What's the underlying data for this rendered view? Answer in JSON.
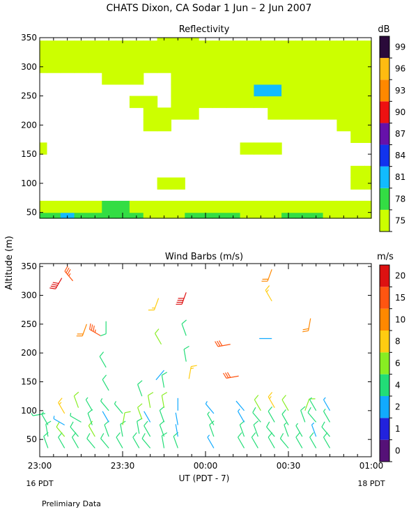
{
  "page_title": "CHATS Dixon, CA  Sodar    1 Jun –  2 Jun 2007",
  "y_axis_label": "Altitude (m)",
  "x_axis_label": "UT  (PDT - 7)",
  "footer_note": "Prelimiary Data",
  "date_left": "16 PDT",
  "date_right": "18 PDT",
  "chart_data": [
    {
      "type": "heatmap",
      "title": "Reflectivity",
      "units_label": "dB",
      "x_ticks": [
        "23:00",
        "23:30",
        "00:00",
        "00:30",
        "01:00"
      ],
      "y_ticks": [
        "50",
        "100",
        "150",
        "200",
        "250",
        "300",
        "350"
      ],
      "ylim": [
        40,
        350
      ],
      "colorbar_levels": [
        "75",
        "78",
        "81",
        "84",
        "87",
        "90",
        "93",
        "96",
        "99"
      ],
      "colorbar_colors": [
        "#ccff00",
        "#33dd44",
        "#11bbff",
        "#1133ee",
        "#6611aa",
        "#ee1111",
        "#ff8800",
        "#ffbb11",
        "#2a0a3a"
      ],
      "grid_times": [
        "23:00",
        "23:05",
        "23:10",
        "23:15",
        "23:20",
        "23:25",
        "23:30",
        "23:35",
        "23:40",
        "23:45",
        "23:50",
        "23:55",
        "00:00",
        "00:05",
        "00:10",
        "00:15",
        "00:20",
        "00:25",
        "00:30",
        "00:35",
        "00:40",
        "00:45",
        "00:50",
        "00:55",
        "01:00"
      ],
      "grid_altitudes": [
        40,
        60,
        80,
        100,
        120,
        140,
        160,
        180,
        200,
        220,
        240,
        260,
        280,
        300,
        320,
        340,
        350
      ],
      "values_db": [
        [
          79,
          79,
          82,
          79,
          79,
          79,
          79,
          79,
          77,
          77,
          77,
          79,
          79,
          79,
          79,
          77,
          77,
          77,
          79,
          79,
          79,
          77,
          77,
          77,
          77
        ],
        [
          77,
          77,
          77,
          77,
          77,
          79,
          79,
          77,
          77,
          77,
          77,
          77,
          77,
          77,
          77,
          77,
          77,
          77,
          77,
          77,
          77,
          77,
          77,
          77,
          77
        ],
        [
          74,
          74,
          74,
          74,
          74,
          74,
          74,
          74,
          74,
          74,
          74,
          74,
          74,
          74,
          74,
          74,
          74,
          74,
          74,
          74,
          74,
          74,
          74,
          74,
          74
        ],
        [
          74,
          74,
          74,
          74,
          74,
          74,
          74,
          74,
          74,
          76,
          76,
          74,
          74,
          74,
          74,
          74,
          74,
          74,
          74,
          74,
          74,
          74,
          74,
          76,
          76
        ],
        [
          74,
          74,
          74,
          74,
          74,
          74,
          74,
          74,
          74,
          74,
          74,
          74,
          74,
          74,
          74,
          74,
          74,
          74,
          74,
          74,
          74,
          74,
          74,
          76,
          76
        ],
        [
          74,
          74,
          74,
          74,
          74,
          74,
          74,
          74,
          74,
          74,
          74,
          74,
          74,
          74,
          74,
          74,
          74,
          74,
          74,
          74,
          74,
          74,
          74,
          74,
          74
        ],
        [
          76,
          74,
          74,
          74,
          74,
          74,
          74,
          74,
          74,
          74,
          74,
          74,
          74,
          74,
          74,
          76,
          76,
          76,
          74,
          74,
          74,
          74,
          74,
          74,
          74
        ],
        [
          74,
          74,
          74,
          74,
          74,
          74,
          74,
          74,
          74,
          74,
          74,
          74,
          74,
          74,
          74,
          74,
          74,
          74,
          74,
          74,
          74,
          74,
          74,
          76,
          77
        ],
        [
          74,
          74,
          74,
          74,
          74,
          74,
          74,
          74,
          76,
          76,
          74,
          74,
          74,
          74,
          74,
          74,
          74,
          74,
          74,
          74,
          74,
          74,
          76,
          77,
          77
        ],
        [
          74,
          74,
          74,
          74,
          74,
          74,
          74,
          74,
          76,
          77,
          76,
          76,
          74,
          74,
          74,
          74,
          74,
          76,
          76,
          76,
          76,
          76,
          77,
          77,
          77
        ],
        [
          74,
          74,
          74,
          74,
          74,
          74,
          74,
          76,
          76,
          74,
          76,
          77,
          77,
          77,
          77,
          77,
          77,
          77,
          77,
          77,
          77,
          77,
          77,
          77,
          77
        ],
        [
          74,
          74,
          74,
          74,
          74,
          74,
          74,
          74,
          74,
          74,
          76,
          77,
          77,
          77,
          77,
          77,
          82,
          82,
          77,
          77,
          77,
          77,
          77,
          77,
          77
        ],
        [
          74,
          74,
          74,
          74,
          74,
          76,
          76,
          76,
          74,
          74,
          76,
          77,
          77,
          77,
          77,
          77,
          77,
          77,
          77,
          77,
          77,
          77,
          77,
          77,
          77
        ],
        [
          76,
          76,
          76,
          77,
          76,
          76,
          76,
          76,
          76,
          76,
          77,
          77,
          77,
          77,
          77,
          77,
          77,
          77,
          76,
          76,
          76,
          76,
          76,
          76,
          76
        ],
        [
          76,
          76,
          76,
          77,
          77,
          76,
          76,
          76,
          76,
          76,
          77,
          76,
          77,
          77,
          76,
          77,
          77,
          76,
          76,
          76,
          76,
          76,
          76,
          76,
          76
        ],
        [
          76,
          76,
          76,
          76,
          76,
          76,
          76,
          76,
          76,
          76,
          76,
          76,
          76,
          76,
          76,
          76,
          76,
          76,
          76,
          76,
          76,
          76,
          76,
          76,
          76
        ],
        [
          74,
          74,
          74,
          74,
          74,
          74,
          74,
          74,
          74,
          76,
          76,
          76,
          74,
          74,
          74,
          74,
          74,
          74,
          74,
          74,
          74,
          74,
          74,
          74,
          74
        ]
      ]
    },
    {
      "type": "scatter",
      "title": "Wind Barbs (m/s)",
      "units_label": "m/s",
      "x_ticks": [
        "23:00",
        "23:30",
        "00:00",
        "00:30",
        "01:00"
      ],
      "y_ticks": [
        "50",
        "100",
        "150",
        "200",
        "250",
        "300",
        "350"
      ],
      "ylim": [
        20,
        355
      ],
      "colorbar_levels": [
        "0",
        "1",
        "2",
        "4",
        "6",
        "8",
        "10",
        "15",
        "20"
      ],
      "colorbar_colors": [
        "#551177",
        "#2222dd",
        "#11aaff",
        "#22dd77",
        "#88ee22",
        "#ffcc11",
        "#ff8800",
        "#ff5511",
        "#dd1111"
      ],
      "barbs": [
        {
          "time": "23:03",
          "alt": 35,
          "speed": 5,
          "dir": 340
        },
        {
          "time": "23:03",
          "alt": 55,
          "speed": 5,
          "dir": 350
        },
        {
          "time": "23:03",
          "alt": 75,
          "speed": 4,
          "dir": 330
        },
        {
          "time": "23:02",
          "alt": 95,
          "speed": 4,
          "dir": 260
        },
        {
          "time": "23:08",
          "alt": 330,
          "speed": 22,
          "dir": 210
        },
        {
          "time": "23:09",
          "alt": 35,
          "speed": 5,
          "dir": 330
        },
        {
          "time": "23:09",
          "alt": 55,
          "speed": 6,
          "dir": 320
        },
        {
          "time": "23:09",
          "alt": 75,
          "speed": 3,
          "dir": 300
        },
        {
          "time": "23:09",
          "alt": 95,
          "speed": 8,
          "dir": 330
        },
        {
          "time": "23:12",
          "alt": 325,
          "speed": 18,
          "dir": 320
        },
        {
          "time": "23:14",
          "alt": 35,
          "speed": 5,
          "dir": 330
        },
        {
          "time": "23:14",
          "alt": 55,
          "speed": 5,
          "dir": 320
        },
        {
          "time": "23:15",
          "alt": 80,
          "speed": 4,
          "dir": 300
        },
        {
          "time": "23:14",
          "alt": 105,
          "speed": 6,
          "dir": 340
        },
        {
          "time": "23:17",
          "alt": 250,
          "speed": 10,
          "dir": 200
        },
        {
          "time": "23:20",
          "alt": 35,
          "speed": 5,
          "dir": 320
        },
        {
          "time": "23:20",
          "alt": 55,
          "speed": 6,
          "dir": 330
        },
        {
          "time": "23:19",
          "alt": 75,
          "speed": 5,
          "dir": 340
        },
        {
          "time": "23:19",
          "alt": 100,
          "speed": 4,
          "dir": 330
        },
        {
          "time": "23:22",
          "alt": 230,
          "speed": 18,
          "dir": 300
        },
        {
          "time": "23:24",
          "alt": 255,
          "speed": 5,
          "dir": 180
        },
        {
          "time": "23:24",
          "alt": 175,
          "speed": 5,
          "dir": 330
        },
        {
          "time": "23:25",
          "alt": 35,
          "speed": 5,
          "dir": 320
        },
        {
          "time": "23:25",
          "alt": 55,
          "speed": 5,
          "dir": 340
        },
        {
          "time": "23:25",
          "alt": 80,
          "speed": 2,
          "dir": 330
        },
        {
          "time": "23:25",
          "alt": 100,
          "speed": 4,
          "dir": 320
        },
        {
          "time": "23:25",
          "alt": 135,
          "speed": 5,
          "dir": 330
        },
        {
          "time": "23:30",
          "alt": 35,
          "speed": 5,
          "dir": 330
        },
        {
          "time": "23:30",
          "alt": 55,
          "speed": 5,
          "dir": 350
        },
        {
          "time": "23:30",
          "alt": 75,
          "speed": 6,
          "dir": 10
        },
        {
          "time": "23:30",
          "alt": 95,
          "speed": 4,
          "dir": 320
        },
        {
          "time": "23:36",
          "alt": 35,
          "speed": 5,
          "dir": 330
        },
        {
          "time": "23:36",
          "alt": 60,
          "speed": 5,
          "dir": 350
        },
        {
          "time": "23:37",
          "alt": 85,
          "speed": 6,
          "dir": 340
        },
        {
          "time": "23:37",
          "alt": 125,
          "speed": 5,
          "dir": 340
        },
        {
          "time": "23:40",
          "alt": 35,
          "speed": 5,
          "dir": 320
        },
        {
          "time": "23:40",
          "alt": 55,
          "speed": 5,
          "dir": 330
        },
        {
          "time": "23:40",
          "alt": 80,
          "speed": 2,
          "dir": 330
        },
        {
          "time": "23:40",
          "alt": 105,
          "speed": 6,
          "dir": 350
        },
        {
          "time": "23:43",
          "alt": 295,
          "speed": 8,
          "dir": 200
        },
        {
          "time": "23:44",
          "alt": 215,
          "speed": 6,
          "dir": 330
        },
        {
          "time": "23:45",
          "alt": 170,
          "speed": 2,
          "dir": 220
        },
        {
          "time": "23:45",
          "alt": 35,
          "speed": 5,
          "dir": 350
        },
        {
          "time": "23:45",
          "alt": 55,
          "speed": 5,
          "dir": 340
        },
        {
          "time": "23:45",
          "alt": 80,
          "speed": 5,
          "dir": 340
        },
        {
          "time": "23:45",
          "alt": 105,
          "speed": 6,
          "dir": 350
        },
        {
          "time": "23:45",
          "alt": 140,
          "speed": 5,
          "dir": 350
        },
        {
          "time": "23:50",
          "alt": 35,
          "speed": 5,
          "dir": 340
        },
        {
          "time": "23:50",
          "alt": 55,
          "speed": 2,
          "dir": 350
        },
        {
          "time": "23:50",
          "alt": 75,
          "speed": 2,
          "dir": 350
        },
        {
          "time": "23:50",
          "alt": 100,
          "speed": 2,
          "dir": 0
        },
        {
          "time": "23:53",
          "alt": 305,
          "speed": 22,
          "dir": 200
        },
        {
          "time": "23:53",
          "alt": 230,
          "speed": 5,
          "dir": 340
        },
        {
          "time": "23:53",
          "alt": 185,
          "speed": 5,
          "dir": 350
        },
        {
          "time": "23:54",
          "alt": 155,
          "speed": 8,
          "dir": 10
        },
        {
          "time": "00:03",
          "alt": 35,
          "speed": 3,
          "dir": 330
        },
        {
          "time": "00:03",
          "alt": 55,
          "speed": 5,
          "dir": 340
        },
        {
          "time": "00:03",
          "alt": 75,
          "speed": 4,
          "dir": 330
        },
        {
          "time": "00:03",
          "alt": 95,
          "speed": 3,
          "dir": 320
        },
        {
          "time": "00:09",
          "alt": 215,
          "speed": 15,
          "dir": 260
        },
        {
          "time": "00:14",
          "alt": 35,
          "speed": 5,
          "dir": 330
        },
        {
          "time": "00:14",
          "alt": 55,
          "speed": 5,
          "dir": 340
        },
        {
          "time": "00:14",
          "alt": 80,
          "speed": 3,
          "dir": 330
        },
        {
          "time": "00:14",
          "alt": 100,
          "speed": 2,
          "dir": 320
        },
        {
          "time": "00:12",
          "alt": 160,
          "speed": 15,
          "dir": 260
        },
        {
          "time": "00:19",
          "alt": 35,
          "speed": 5,
          "dir": 330
        },
        {
          "time": "00:19",
          "alt": 55,
          "speed": 5,
          "dir": 340
        },
        {
          "time": "00:20",
          "alt": 80,
          "speed": 5,
          "dir": 320
        },
        {
          "time": "00:20",
          "alt": 100,
          "speed": 6,
          "dir": 330
        },
        {
          "time": "00:24",
          "alt": 345,
          "speed": 10,
          "dir": 200
        },
        {
          "time": "00:24",
          "alt": 290,
          "speed": 8,
          "dir": 330
        },
        {
          "time": "00:24",
          "alt": 225,
          "speed": 2,
          "dir": 270
        },
        {
          "time": "00:25",
          "alt": 35,
          "speed": 5,
          "dir": 330
        },
        {
          "time": "00:25",
          "alt": 55,
          "speed": 5,
          "dir": 320
        },
        {
          "time": "00:25",
          "alt": 80,
          "speed": 5,
          "dir": 330
        },
        {
          "time": "00:25",
          "alt": 105,
          "speed": 8,
          "dir": 330
        },
        {
          "time": "00:30",
          "alt": 35,
          "speed": 5,
          "dir": 320
        },
        {
          "time": "00:30",
          "alt": 55,
          "speed": 4,
          "dir": 340
        },
        {
          "time": "00:30",
          "alt": 75,
          "speed": 5,
          "dir": 330
        },
        {
          "time": "00:30",
          "alt": 100,
          "speed": 6,
          "dir": 330
        },
        {
          "time": "00:35",
          "alt": 35,
          "speed": 5,
          "dir": 330
        },
        {
          "time": "00:35",
          "alt": 55,
          "speed": 4,
          "dir": 330
        },
        {
          "time": "00:36",
          "alt": 80,
          "speed": 5,
          "dir": 340
        },
        {
          "time": "00:36",
          "alt": 100,
          "speed": 6,
          "dir": 20
        },
        {
          "time": "00:38",
          "alt": 260,
          "speed": 10,
          "dir": 190
        },
        {
          "time": "00:40",
          "alt": 35,
          "speed": 5,
          "dir": 330
        },
        {
          "time": "00:40",
          "alt": 55,
          "speed": 3,
          "dir": 340
        },
        {
          "time": "00:40",
          "alt": 80,
          "speed": 5,
          "dir": 320
        },
        {
          "time": "00:40",
          "alt": 100,
          "speed": 4,
          "dir": 330
        },
        {
          "time": "00:45",
          "alt": 35,
          "speed": 5,
          "dir": 330
        },
        {
          "time": "00:45",
          "alt": 55,
          "speed": 5,
          "dir": 320
        },
        {
          "time": "00:45",
          "alt": 80,
          "speed": 4,
          "dir": 330
        },
        {
          "time": "00:45",
          "alt": 100,
          "speed": 3,
          "dir": 330
        }
      ]
    }
  ]
}
